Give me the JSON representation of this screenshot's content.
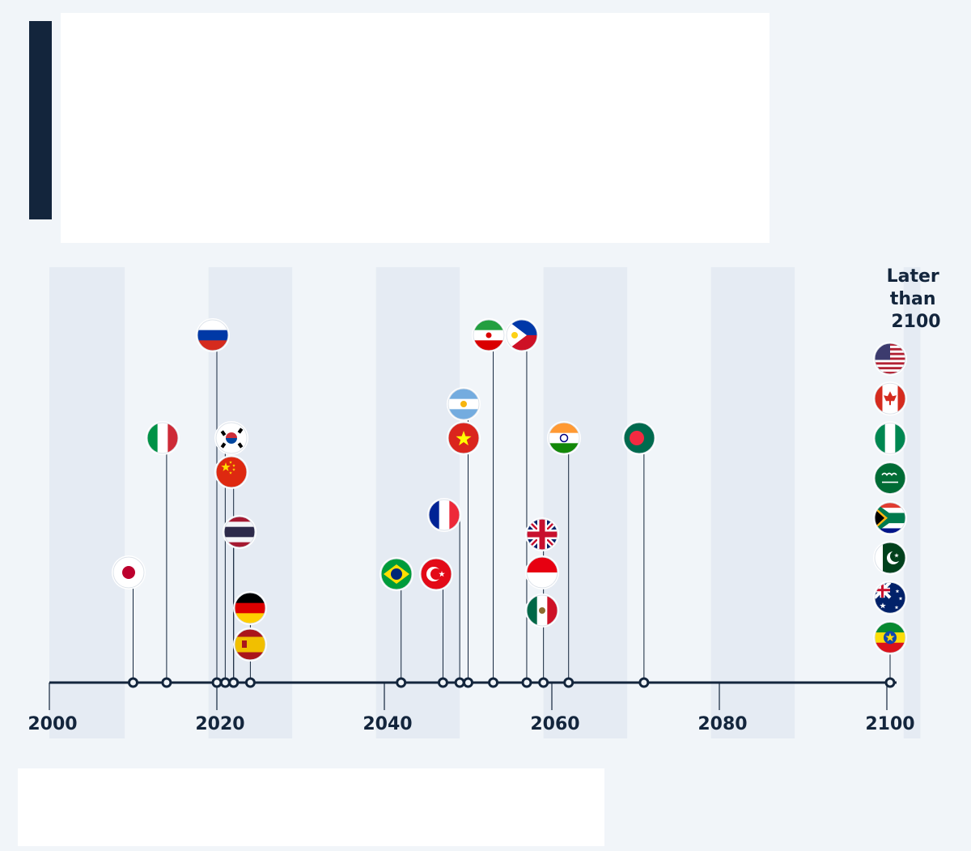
{
  "colors": {
    "accent": "#13253c",
    "axis": "#13253c",
    "band": "#e5ebf3",
    "background": "#f1f5f9"
  },
  "chart_data": {
    "type": "timeline",
    "title": "",
    "xlabel": "",
    "ylabel": "",
    "xlim": [
      2000,
      2100
    ],
    "ticks": [
      "2000",
      "2020",
      "2040",
      "2060",
      "2080",
      "2100"
    ],
    "later_label": "Later than 2100",
    "points": [
      {
        "year": 2010,
        "flags": [
          "japan-flag"
        ]
      },
      {
        "year": 2014,
        "flags": [
          "italy-flag"
        ]
      },
      {
        "year": 2020,
        "flags": [
          "russia-flag"
        ]
      },
      {
        "year": 2021,
        "flags": [
          "south-korea-flag"
        ]
      },
      {
        "year": 2022,
        "flags": [
          "china-flag"
        ]
      },
      {
        "year": 2022,
        "flags": [
          "thailand-flag"
        ]
      },
      {
        "year": 2024,
        "flags": [
          "germany-flag",
          "spain-flag"
        ]
      },
      {
        "year": 2042,
        "flags": [
          "brazil-flag"
        ]
      },
      {
        "year": 2047,
        "flags": [
          "turkey-flag"
        ]
      },
      {
        "year": 2049,
        "flags": [
          "france-flag"
        ]
      },
      {
        "year": 2050,
        "flags": [
          "argentina-flag",
          "vietnam-flag"
        ]
      },
      {
        "year": 2053,
        "flags": [
          "iran-flag"
        ]
      },
      {
        "year": 2057,
        "flags": [
          "philippines-flag"
        ]
      },
      {
        "year": 2059,
        "flags": [
          "united-kingdom-flag",
          "indonesia-flag",
          "mexico-flag"
        ]
      },
      {
        "year": 2062,
        "flags": [
          "india-flag"
        ]
      },
      {
        "year": 2071,
        "flags": [
          "bangladesh-flag"
        ]
      }
    ],
    "later_than_2100": [
      "united-states-flag",
      "canada-flag",
      "nigeria-flag",
      "saudi-arabia-flag",
      "south-africa-flag",
      "pakistan-flag",
      "australia-flag",
      "ethiopia-flag"
    ]
  }
}
